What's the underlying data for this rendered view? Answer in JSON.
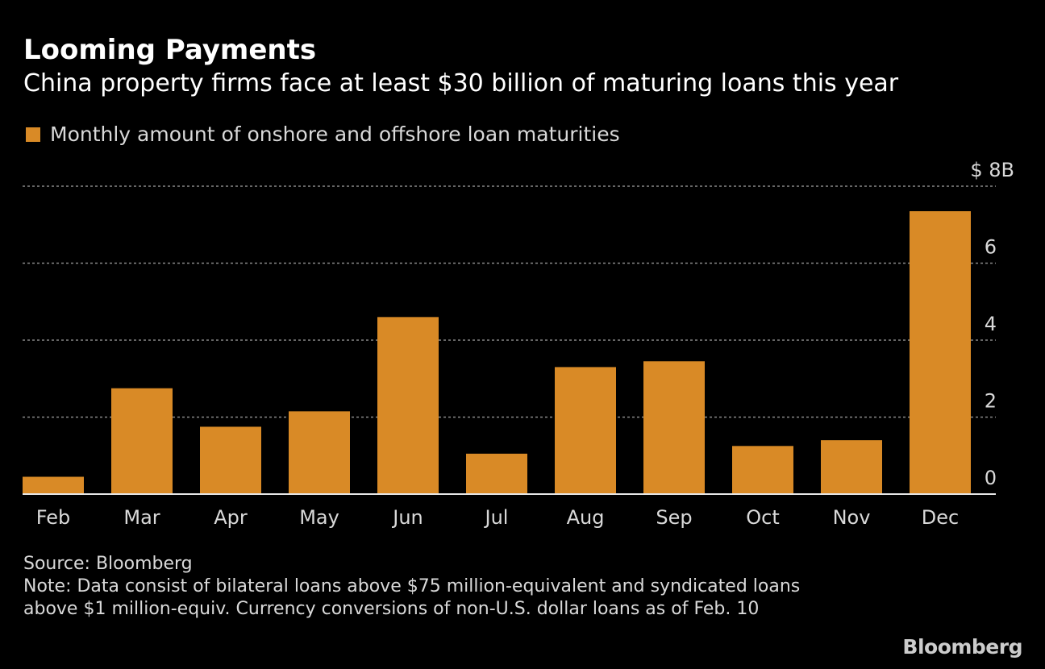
{
  "title": "Looming Payments",
  "subtitle": "China property firms face at least $30 billion of maturing loans this year",
  "source": "Source: Bloomberg",
  "note": "Note: Data consist of bilateral loans above $75 million-equivalent and syndicated loans above $1 million-equiv. Currency conversions of non-U.S. dollar loans as of Feb. 10",
  "logo": "Bloomberg",
  "colors": {
    "bar": "#d98a26",
    "grid": "#888888",
    "background": "#000000"
  },
  "chart_data": {
    "type": "bar",
    "title": "Looming Payments",
    "legend": [
      "Monthly amount of onshore and offshore loan maturities"
    ],
    "legend_position": "top-left",
    "categories": [
      "Feb",
      "Mar",
      "Apr",
      "May",
      "Jun",
      "Jul",
      "Aug",
      "Sep",
      "Oct",
      "Nov",
      "Dec"
    ],
    "values": [
      0.45,
      2.75,
      1.75,
      2.15,
      4.6,
      1.05,
      3.3,
      3.45,
      1.25,
      1.4,
      7.35
    ],
    "yticks": [
      0,
      2,
      4,
      6,
      8
    ],
    "ytick_labels": [
      "0",
      "2",
      "4",
      "6",
      "$ 8B"
    ],
    "ylim": [
      0,
      8
    ],
    "ylabel": "",
    "xlabel": "",
    "grid": true
  }
}
